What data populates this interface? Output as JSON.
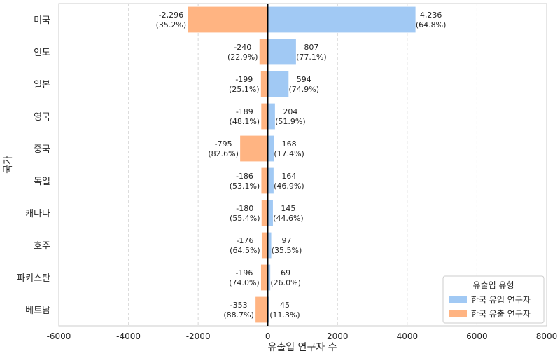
{
  "chart_data": {
    "type": "bar",
    "orientation": "horizontal",
    "title": "",
    "xlabel": "유출입 연구자 수",
    "ylabel": "국가",
    "xlim": [
      -6000,
      8000
    ],
    "xticks": [
      -6000,
      -4000,
      -2000,
      0,
      2000,
      4000,
      6000,
      8000
    ],
    "xtick_labels": [
      "-6000",
      "-4000",
      "-2000",
      "0",
      "2000",
      "4000",
      "6000",
      "8000"
    ],
    "grid": "vertical dashed",
    "categories": [
      "미국",
      "인도",
      "일본",
      "영국",
      "중국",
      "독일",
      "캐나다",
      "호주",
      "파키스탄",
      "베트남"
    ],
    "series": [
      {
        "name": "한국 유입 연구자",
        "color": "#a1c9f4",
        "values": [
          4236,
          807,
          594,
          204,
          168,
          164,
          145,
          97,
          69,
          45
        ],
        "labels": [
          "4,236",
          "807",
          "594",
          "204",
          "168",
          "164",
          "145",
          "97",
          "69",
          "45"
        ],
        "percents": [
          "(64.8%)",
          "(77.1%)",
          "(74.9%)",
          "(51.9%)",
          "(17.4%)",
          "(46.9%)",
          "(44.6%)",
          "(35.5%)",
          "(26.0%)",
          "(11.3%)"
        ]
      },
      {
        "name": "한국 유출 연구자",
        "color": "#ffb482",
        "values": [
          -2296,
          -240,
          -199,
          -189,
          -795,
          -186,
          -180,
          -176,
          -196,
          -353
        ],
        "labels": [
          "-2,296",
          "-240",
          "-199",
          "-189",
          "-795",
          "-186",
          "-180",
          "-176",
          "-196",
          "-353"
        ],
        "percents": [
          "(35.2%)",
          "(22.9%)",
          "(25.1%)",
          "(48.1%)",
          "(82.6%)",
          "(53.1%)",
          "(55.4%)",
          "(64.5%)",
          "(74.0%)",
          "(88.7%)"
        ]
      }
    ],
    "legend": {
      "title": "유출입 유형",
      "position": "lower-right"
    }
  }
}
